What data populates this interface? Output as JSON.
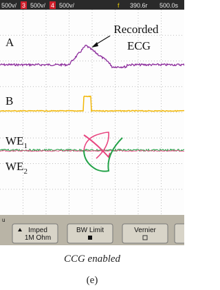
{
  "top_bar": [
    "500v/",
    "3",
    "500v/",
    "4",
    "500v/",
    "f",
    "390.6r",
    "500.0s"
  ],
  "traces": {
    "a": "A",
    "b": "B",
    "we1": {
      "label": "WE",
      "sub": "1"
    },
    "we2": {
      "label": "WE",
      "sub": "2"
    }
  },
  "annotation": [
    "Recorded",
    "ECG"
  ],
  "softkeys": {
    "indicator": "u",
    "imped": [
      "Imped",
      "1M Ohm"
    ],
    "bw_limit": "BW Limit",
    "vernier": "Vernier"
  },
  "caption": "CCG enabled",
  "panel_label": "(e)"
}
